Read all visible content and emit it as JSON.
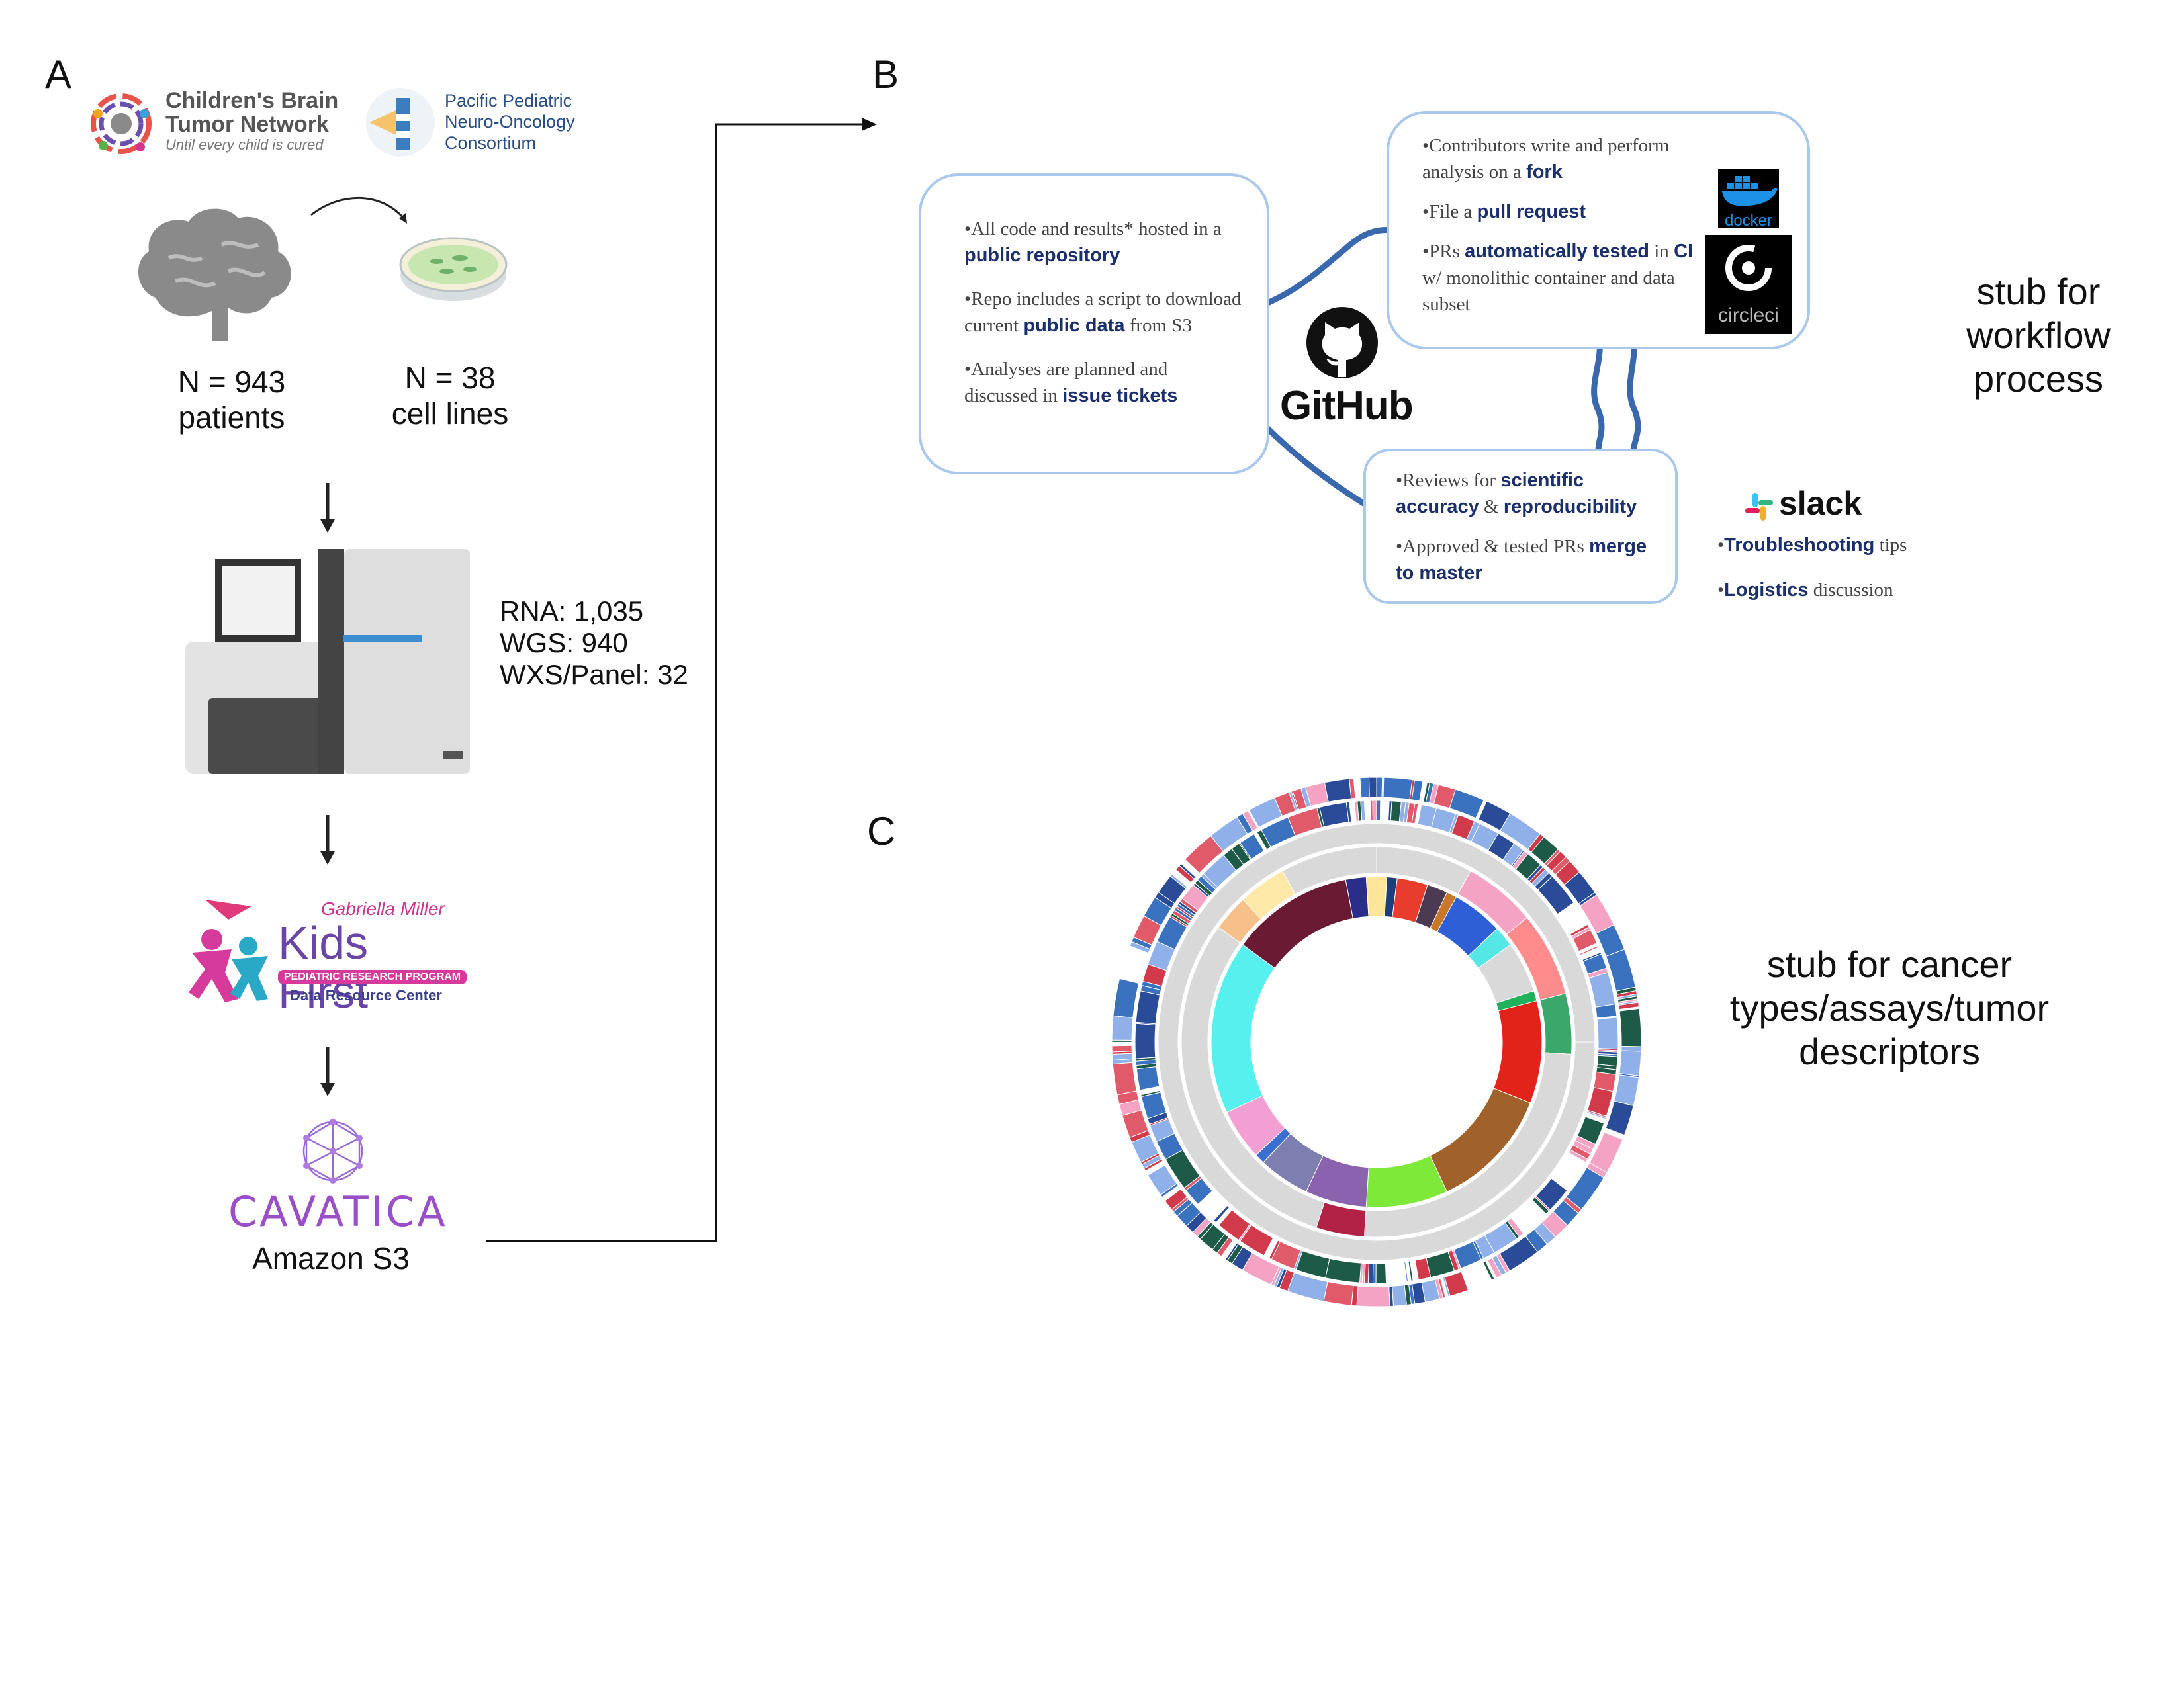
{
  "panels": {
    "a": "A",
    "b": "B",
    "c": "C"
  },
  "panel_a": {
    "cbtn": {
      "line1": "Children's Brain",
      "line2": "Tumor Network",
      "tagline": "Until every child is cured"
    },
    "pnoc": {
      "line1": "Pacific Pediatric",
      "line2": "Neuro-Oncology",
      "line3": "Consortium"
    },
    "patients": {
      "count": "N = 943",
      "label": "patients"
    },
    "cell_lines": {
      "count": "N = 38",
      "label": "cell lines"
    },
    "assays": {
      "rna": "RNA: 1,035",
      "wgs": "WGS: 940",
      "wxs": "WXS/Panel: 32"
    },
    "kids_first": {
      "sponsor": "Gabriella Miller",
      "title": "Kids First",
      "banner": "PEDIATRIC RESEARCH PROGRAM",
      "subtitle": "Data Resource Center"
    },
    "cavatica": {
      "logo": "CAVATICA",
      "storage": "Amazon S3"
    }
  },
  "panel_b": {
    "left_card": {
      "b1_pre": "All code and results* hosted in a",
      "b1_hl": "public repository",
      "b2_pre": "Repo includes a script to download current",
      "b2_hl": "public data",
      "b2_post": "from S3",
      "b3_pre": "Analyses are planned  and discussed in",
      "b3_hl": "issue tickets"
    },
    "top_card": {
      "b1_pre": "Contributors write and perform analysis on a",
      "b1_hl": "fork",
      "b2_pre": "File a",
      "b2_hl": "pull request",
      "b3_pre": "PRs",
      "b3_hl": "automatically tested",
      "b3_mid": "in",
      "b3_hl2": "CI",
      "b3_post": "w/ monolithic container and data subset"
    },
    "bottom_card": {
      "b1_pre": "Reviews for",
      "b1_hl": "scientific accuracy",
      "b1_mid": "&",
      "b1_hl2": "reproducibility",
      "b2_pre": "Approved & tested PRs",
      "b2_hl": "merge to master"
    },
    "github": "GitHub",
    "docker": "docker",
    "circleci": "circleci",
    "slack": {
      "logo": "slack",
      "t1_hl": "Troubleshooting",
      "t1_post": "tips",
      "t2_hl": "Logistics",
      "t2_post": "discussion"
    },
    "stub": {
      "line1": "stub for",
      "line2": "workflow",
      "line3": "process"
    }
  },
  "panel_c": {
    "stub": {
      "line1": "stub for cancer",
      "line2": "types/assays/tumor",
      "line3": "descriptors"
    }
  },
  "colors": {
    "card_border": "#a9c8ec",
    "connector": "#3a68ad",
    "highlight": "#1a2f6b"
  }
}
